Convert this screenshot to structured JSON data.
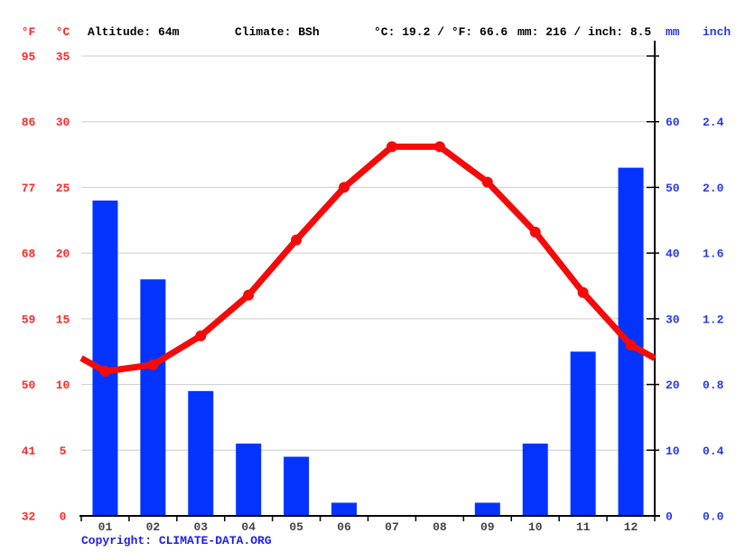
{
  "header": {
    "temp_unit_f": "°F",
    "temp_unit_c": "°C",
    "altitude": "Altitude: 64m",
    "climate": "Climate: BSh",
    "avg_temp": "°C: 19.2 / °F: 66.6",
    "precip_total": "mm: 216 / inch: 8.5",
    "precip_unit_mm": "mm",
    "precip_unit_inch": "inch"
  },
  "copyright": {
    "label": "Copyright: ",
    "link": "CLIMATE-DATA.ORG"
  },
  "chart_data": {
    "type": "climate-combo (bar + line)",
    "title": "",
    "months": [
      "01",
      "02",
      "03",
      "04",
      "05",
      "06",
      "07",
      "08",
      "09",
      "10",
      "11",
      "12"
    ],
    "series": [
      {
        "name": "temperature_c",
        "type": "line",
        "values": [
          11,
          11.5,
          13.7,
          16.8,
          21,
          25,
          28.1,
          28.1,
          25.4,
          21.6,
          17,
          13
        ]
      },
      {
        "name": "precipitation_mm",
        "type": "bar",
        "values": [
          48,
          36,
          19,
          11,
          9,
          2,
          0,
          0,
          2,
          11,
          25,
          53
        ]
      }
    ],
    "annual_mean_temp_c": 19.2,
    "annual_mean_temp_f": 66.6,
    "annual_precip_mm": 216,
    "annual_precip_inch": 8.5,
    "temp_axis": {
      "f_ticks": [
        "95",
        "86",
        "77",
        "68",
        "59",
        "50",
        "41",
        "32"
      ],
      "c_ticks": [
        "35",
        "30",
        "25",
        "20",
        "15",
        "10",
        "5",
        "0"
      ],
      "range_c": [
        0,
        35
      ]
    },
    "precip_axis": {
      "mm_ticks": [
        "60",
        "50",
        "40",
        "30",
        "20",
        "10",
        "0"
      ],
      "inch_ticks": [
        "2.4",
        "2.0",
        "1.6",
        "1.2",
        "0.8",
        "0.4",
        "0.0"
      ],
      "range_mm": [
        0,
        70
      ]
    },
    "layout": {
      "grid": true,
      "legend": "none",
      "left_axis": "temperature",
      "right_axis": "precipitation"
    },
    "colors": {
      "bar_blue": "#0433fe",
      "line_red": "#f50a0a",
      "red_label": "#ff2929",
      "blue_label": "#2538f0",
      "copyright_blue": "#1e1ef0",
      "month_label": "#444444",
      "gridline": "#cccccc",
      "axis_black": "#000000"
    }
  }
}
